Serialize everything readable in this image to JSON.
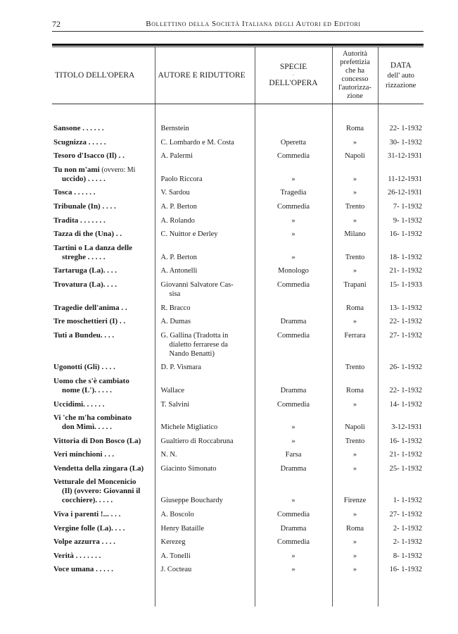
{
  "page_number": "72",
  "running_head": "Bollettino della Società Italiana degli Autori ed Editori",
  "table": {
    "headers": {
      "title": "TITOLO DELL'OPERA",
      "author": "AUTORE E RIDUTTORE",
      "species": [
        "SPECIE",
        "DELL'OPERA"
      ],
      "authority": [
        "Autorità",
        "prefettizia",
        "che ha",
        "concesso",
        "l'autorizza-",
        "zione"
      ],
      "date": [
        "DATA",
        "dell' auto",
        "rizzazione"
      ]
    },
    "rows": [
      {
        "title": [
          "Sansone . . . . . ."
        ],
        "author": [
          "Bernstein"
        ],
        "species": "",
        "authority": "Roma",
        "date": "22- 1-1932"
      },
      {
        "title": [
          "Scugnizza . . . . ."
        ],
        "author": [
          "C. Lombardo e M. Costa"
        ],
        "species": "Operetta",
        "authority": "»",
        "date": "30- 1-1932"
      },
      {
        "title": [
          "Tesoro d'Isacco (Il) . ."
        ],
        "author": [
          "A. Palermi"
        ],
        "species": "Commedia",
        "authority": "Napoli",
        "date": "31-12-1931"
      },
      {
        "title": [
          "Tu non m'ami",
          "(ovvero: Mi",
          "uccido) . . . . ."
        ],
        "author": [
          "Paolo Riccora"
        ],
        "species": "»",
        "authority": "»",
        "date": "11-12-1931"
      },
      {
        "title": [
          "Tosca . . . . . ."
        ],
        "author": [
          "V. Sardou"
        ],
        "species": "Tragedia",
        "authority": "»",
        "date": "26-12-1931"
      },
      {
        "title": [
          "Tribunale (In) . . . ."
        ],
        "author": [
          "A. P. Berton"
        ],
        "species": "Commedia",
        "authority": "Trento",
        "date": "7- 1-1932"
      },
      {
        "title": [
          "Tradita . . . . . . ."
        ],
        "author": [
          "A. Rolando"
        ],
        "species": "»",
        "authority": "»",
        "date": "9- 1-1932"
      },
      {
        "title": [
          "Tazza di the (Una) . ."
        ],
        "author": [
          "C. Nuittor e Derley"
        ],
        "species": "»",
        "authority": "Milano",
        "date": "16- 1-1932"
      },
      {
        "title": [
          "Tartini o La danza delle",
          "streghe . . . . ."
        ],
        "author": [
          "A. P. Berton"
        ],
        "species": "»",
        "authority": "Trento",
        "date": "18- 1-1932"
      },
      {
        "title": [
          "Tartaruga (La). . . ."
        ],
        "author": [
          "A. Antonelli"
        ],
        "species": "Monologo",
        "authority": "»",
        "date": "21- 1-1932"
      },
      {
        "title": [
          "Trovatura (La). . . ."
        ],
        "author": [
          "Giovanni Salvatore Cas-",
          "sisa"
        ],
        "species": "Commedia",
        "authority": "Trapani",
        "date": "15- 1-1933"
      },
      {
        "title": [
          "Tragedie dell'anima . ."
        ],
        "author": [
          "R. Bracco"
        ],
        "species": "",
        "authority": "Roma",
        "date": "13- 1-1932"
      },
      {
        "title": [
          "Tre moschettieri (I) . ."
        ],
        "author": [
          "A. Dumas"
        ],
        "species": "Dramma",
        "authority": "»",
        "date": "22- 1-1932"
      },
      {
        "title": [
          "Tuti a Bundeu. . . ."
        ],
        "author": [
          "G. Gallina (Tradotta in",
          "dialetto ferrarese da",
          "Nando Benatti)"
        ],
        "species": "Commedia",
        "authority": "Ferrara",
        "date": "27- 1-1932"
      },
      {
        "title": [
          "Ugonotti (Gli) . . . ."
        ],
        "author": [
          "D. P. Vismara"
        ],
        "species": "",
        "authority": "Trento",
        "date": "26- 1-1932"
      },
      {
        "title": [
          "Uomo che s'è cambiato",
          "nome (L'). . . . ."
        ],
        "author": [
          "Wallace"
        ],
        "species": "Dramma",
        "authority": "Roma",
        "date": "22- 1-1932"
      },
      {
        "title": [
          "Uccidimi. . . . . ."
        ],
        "author": [
          "T. Salvini"
        ],
        "species": "Commedia",
        "authority": "»",
        "date": "14- 1-1932"
      },
      {
        "title": [
          "Vi 'che m'ha combinato",
          "don Mimì. . . . ."
        ],
        "author": [
          "Michele Migliatico"
        ],
        "species": "»",
        "authority": "Napoli",
        "date": "3-12-1931"
      },
      {
        "title": [
          "Vittoria di Don Bosco (La)"
        ],
        "author": [
          "Gualtiero di Roccabruna"
        ],
        "species": "»",
        "authority": "Trento",
        "date": "16- 1-1932"
      },
      {
        "title": [
          "Veri minchioni . . ."
        ],
        "author": [
          "N. N."
        ],
        "species": "Farsa",
        "authority": "»",
        "date": "21- 1-1932"
      },
      {
        "title": [
          "Vendetta della zingara (La)"
        ],
        "author": [
          "Giacinto Simonato"
        ],
        "species": "Dramma",
        "authority": "»",
        "date": "25- 1-1932"
      },
      {
        "title": [
          "Vetturale del Moncenicio",
          "(Il) (ovvero: Giovanni il",
          "cocchiere). . . . ."
        ],
        "author": [
          "Giuseppe Bouchardy"
        ],
        "species": "»",
        "authority": "Firenze",
        "date": "1- 1-1932"
      },
      {
        "title": [
          "Viva i parenti !... . . ."
        ],
        "author": [
          "A. Boscolo"
        ],
        "species": "Commedia",
        "authority": "»",
        "date": "27- 1-1932"
      },
      {
        "title": [
          "Vergine folle (La). . . ."
        ],
        "author": [
          "Henry Bataille"
        ],
        "species": "Dramma",
        "authority": "Roma",
        "date": "2- 1-1932"
      },
      {
        "title": [
          "Volpe azzurra . . . ."
        ],
        "author": [
          "Kerezeg"
        ],
        "species": "Commedia",
        "authority": "»",
        "date": "2- 1-1932"
      },
      {
        "title": [
          "Verità . . . . . . ."
        ],
        "author": [
          "A. Tonelli"
        ],
        "species": "»",
        "authority": "»",
        "date": "8- 1-1932"
      },
      {
        "title": [
          "Voce umana . . . . ."
        ],
        "author": [
          "J. Cocteau"
        ],
        "species": "»",
        "authority": "»",
        "date": "16- 1-1932"
      }
    ]
  }
}
